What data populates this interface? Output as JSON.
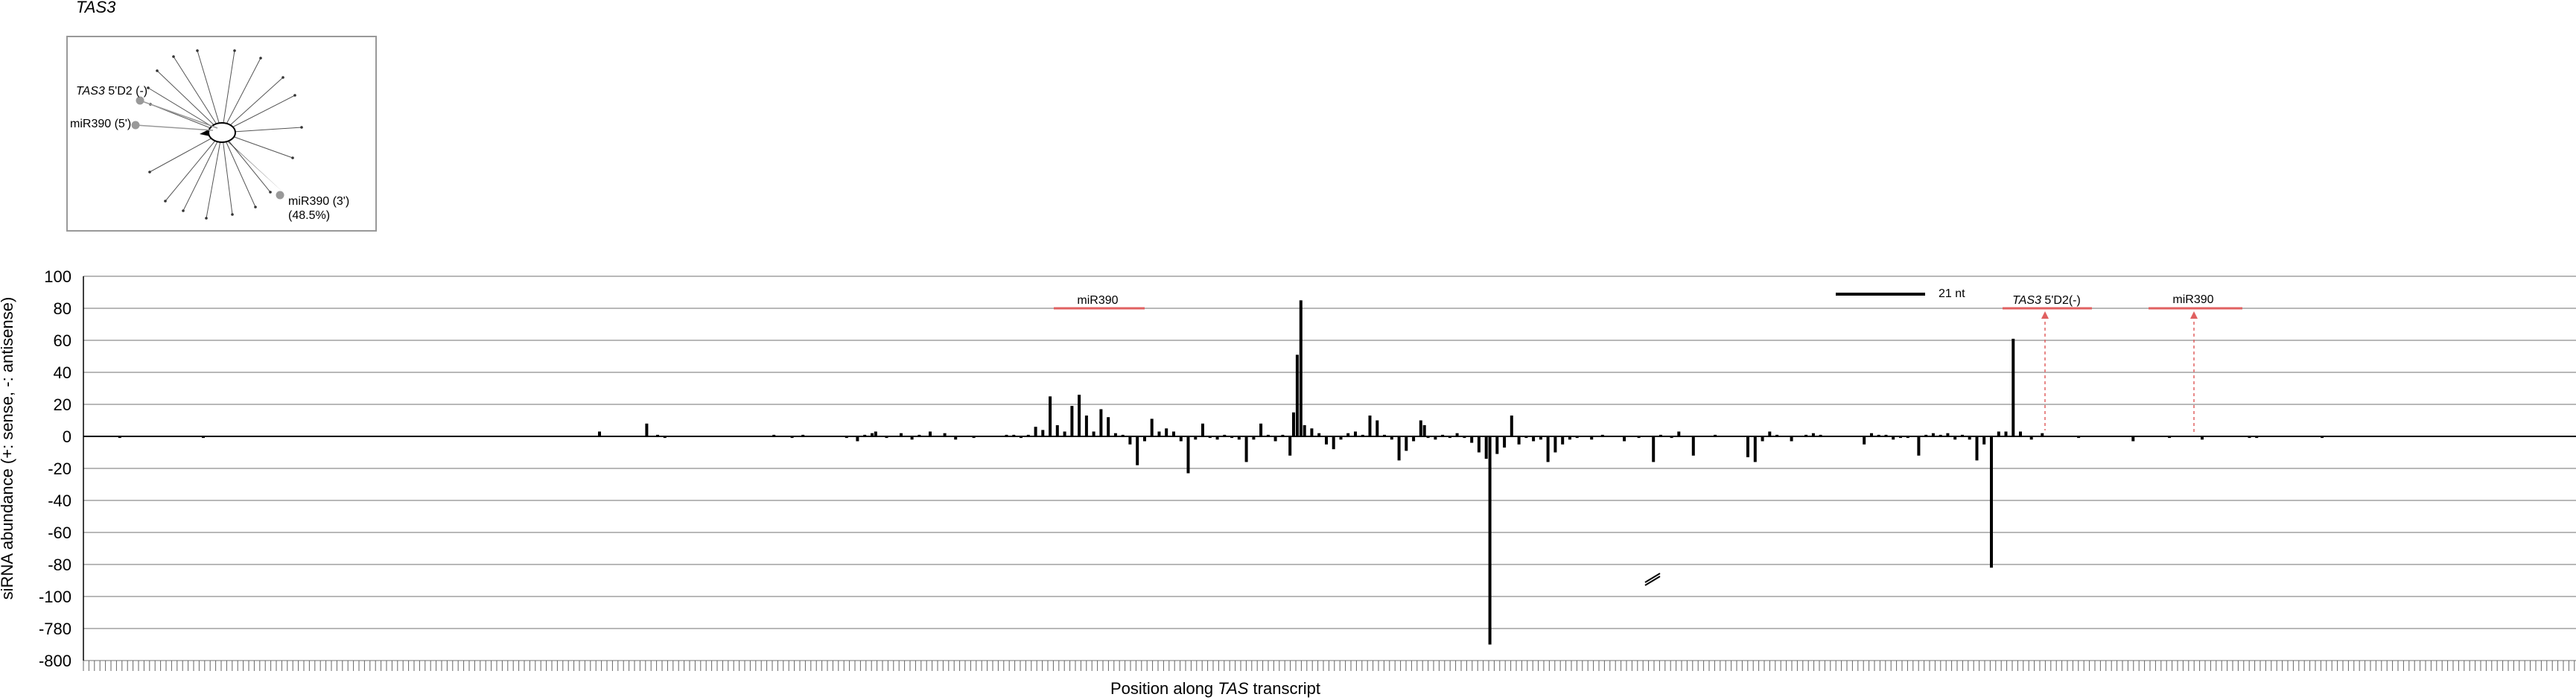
{
  "chart_data": {
    "type": "bar",
    "title": "TAS3",
    "xlabel_prefix": "Position along ",
    "xlabel_italic": "TAS",
    "xlabel_suffix": " transcript",
    "ylabel": "siRNA abundance (+: sense, -: antisense)",
    "y_tick_labels": [
      "100",
      "80",
      "60",
      "40",
      "20",
      "0",
      "-20",
      "-40",
      "-60",
      "-80",
      "-100",
      "-780",
      "-800"
    ],
    "y_break": "between -100 and -780 (broken axis)",
    "scale_bar_label": "21 nt",
    "annotations": [
      {
        "id": "mir390-left",
        "label": "miR390",
        "italic": "",
        "suffix": ""
      },
      {
        "id": "tas3-5d2",
        "label": "",
        "italic": "TAS3",
        "suffix": " 5'D2(-)"
      },
      {
        "id": "mir390-right",
        "label": "miR390",
        "italic": "",
        "suffix": ""
      }
    ],
    "series": [
      {
        "name": "siRNA abundance",
        "points": [
          [
            20,
            -1
          ],
          [
            66,
            -1
          ],
          [
            284,
            3
          ],
          [
            310,
            8
          ],
          [
            316,
            1
          ],
          [
            320,
            -1
          ],
          [
            380,
            1
          ],
          [
            390,
            -1
          ],
          [
            396,
            1
          ],
          [
            420,
            -1
          ],
          [
            426,
            -3
          ],
          [
            430,
            1
          ],
          [
            434,
            2
          ],
          [
            436,
            3
          ],
          [
            442,
            -1
          ],
          [
            450,
            2
          ],
          [
            456,
            -2
          ],
          [
            460,
            1
          ],
          [
            466,
            3
          ],
          [
            474,
            2
          ],
          [
            480,
            -2
          ],
          [
            490,
            -1
          ],
          [
            508,
            1
          ],
          [
            512,
            1
          ],
          [
            516,
            -1
          ],
          [
            520,
            1
          ],
          [
            524,
            6
          ],
          [
            528,
            4
          ],
          [
            532,
            25
          ],
          [
            536,
            7
          ],
          [
            540,
            3
          ],
          [
            544,
            19
          ],
          [
            548,
            26
          ],
          [
            552,
            13
          ],
          [
            556,
            3
          ],
          [
            560,
            17
          ],
          [
            564,
            12
          ],
          [
            568,
            2
          ],
          [
            572,
            1
          ],
          [
            576,
            -5
          ],
          [
            580,
            -18
          ],
          [
            584,
            -3
          ],
          [
            588,
            11
          ],
          [
            592,
            3
          ],
          [
            596,
            5
          ],
          [
            600,
            3
          ],
          [
            604,
            -3
          ],
          [
            608,
            -23
          ],
          [
            612,
            -2
          ],
          [
            616,
            8
          ],
          [
            620,
            -1
          ],
          [
            624,
            -2
          ],
          [
            628,
            1
          ],
          [
            632,
            -1
          ],
          [
            636,
            -2
          ],
          [
            640,
            -16
          ],
          [
            644,
            -2
          ],
          [
            648,
            8
          ],
          [
            652,
            1
          ],
          [
            656,
            -3
          ],
          [
            660,
            1
          ],
          [
            664,
            -12
          ],
          [
            666,
            15
          ],
          [
            668,
            51
          ],
          [
            670,
            85
          ],
          [
            672,
            7
          ],
          [
            676,
            5
          ],
          [
            680,
            2
          ],
          [
            684,
            -5
          ],
          [
            688,
            -8
          ],
          [
            692,
            -2
          ],
          [
            696,
            2
          ],
          [
            700,
            3
          ],
          [
            704,
            1
          ],
          [
            708,
            13
          ],
          [
            712,
            10
          ],
          [
            716,
            1
          ],
          [
            720,
            -2
          ],
          [
            724,
            -15
          ],
          [
            728,
            -9
          ],
          [
            732,
            -3
          ],
          [
            736,
            10
          ],
          [
            738,
            7
          ],
          [
            740,
            -1
          ],
          [
            744,
            -2
          ],
          [
            748,
            1
          ],
          [
            752,
            -1
          ],
          [
            756,
            2
          ],
          [
            760,
            -1
          ],
          [
            764,
            -4
          ],
          [
            768,
            -10
          ],
          [
            772,
            -14
          ],
          [
            774,
            -790
          ],
          [
            778,
            -11
          ],
          [
            782,
            -7
          ],
          [
            786,
            13
          ],
          [
            790,
            -5
          ],
          [
            794,
            -1
          ],
          [
            798,
            -3
          ],
          [
            802,
            -2
          ],
          [
            806,
            -16
          ],
          [
            810,
            -10
          ],
          [
            814,
            -5
          ],
          [
            818,
            -2
          ],
          [
            822,
            -1
          ],
          [
            830,
            -2
          ],
          [
            836,
            1
          ],
          [
            848,
            -3
          ],
          [
            856,
            -1
          ],
          [
            864,
            -16
          ],
          [
            868,
            1
          ],
          [
            874,
            -1
          ],
          [
            878,
            3
          ],
          [
            886,
            -12
          ],
          [
            898,
            1
          ],
          [
            916,
            -13
          ],
          [
            920,
            -16
          ],
          [
            924,
            -3
          ],
          [
            928,
            3
          ],
          [
            932,
            1
          ],
          [
            940,
            -3
          ],
          [
            948,
            1
          ],
          [
            952,
            2
          ],
          [
            956,
            1
          ],
          [
            980,
            -5
          ],
          [
            984,
            2
          ],
          [
            988,
            1
          ],
          [
            992,
            1
          ],
          [
            996,
            -2
          ],
          [
            1000,
            -1
          ],
          [
            1004,
            -1
          ],
          [
            1010,
            -12
          ],
          [
            1014,
            1
          ],
          [
            1018,
            2
          ],
          [
            1022,
            1
          ],
          [
            1026,
            2
          ],
          [
            1030,
            -2
          ],
          [
            1034,
            1
          ],
          [
            1038,
            -2
          ],
          [
            1042,
            -15
          ],
          [
            1046,
            -5
          ],
          [
            1050,
            -82
          ],
          [
            1054,
            3
          ],
          [
            1058,
            3
          ],
          [
            1062,
            61
          ],
          [
            1066,
            3
          ],
          [
            1072,
            -2
          ],
          [
            1078,
            2
          ],
          [
            1098,
            -1
          ],
          [
            1128,
            -3
          ],
          [
            1148,
            -1
          ],
          [
            1166,
            -2
          ],
          [
            1192,
            -1
          ],
          [
            1196,
            -1
          ],
          [
            1232,
            -1
          ]
        ]
      }
    ]
  },
  "inset": {
    "labels": [
      {
        "id": "tas3-5d2-inset",
        "text": "",
        "italic": "TAS3",
        "suffix": " 5'D2 (-)"
      },
      {
        "id": "mir390-5p",
        "text": "miR390 (5')",
        "italic": "",
        "suffix": ""
      },
      {
        "id": "mir390-3p",
        "text": "miR390 (3')",
        "italic": "",
        "suffix": ""
      },
      {
        "id": "mir390-3p-pct",
        "text": "(48.5%)",
        "italic": "",
        "suffix": ""
      }
    ]
  },
  "colors": {
    "bars": "#000000",
    "annotation": "#e06060",
    "grid": "#a0a0a0",
    "inset_border": "#999999"
  }
}
